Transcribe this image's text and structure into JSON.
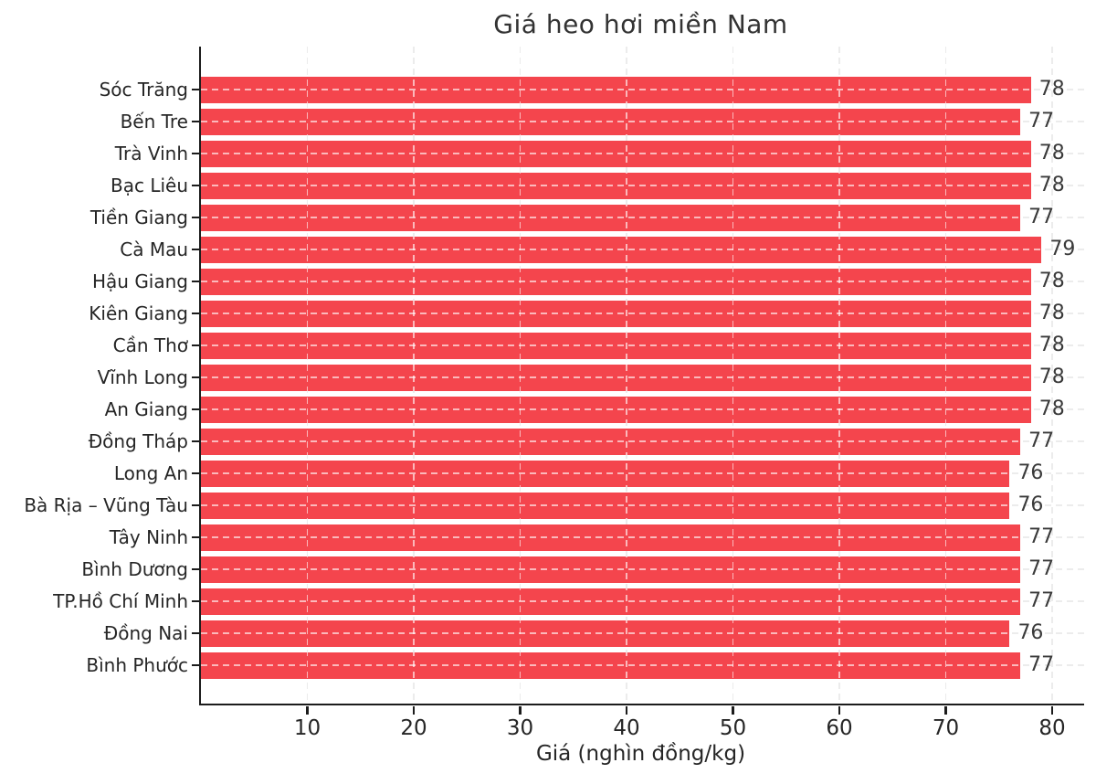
{
  "chart_data": {
    "type": "bar",
    "orientation": "horizontal",
    "title": "Giá heo hơi miền Nam",
    "xlabel": "Giá (nghìn đồng/kg)",
    "categories": [
      "Sóc Trăng",
      "Bến Tre",
      "Trà Vinh",
      "Bạc Liêu",
      "Tiền Giang",
      "Cà Mau",
      "Hậu Giang",
      "Kiên Giang",
      "Cần Thơ",
      "Vĩnh Long",
      "An Giang",
      "Đồng Tháp",
      "Long An",
      "Bà Rịa – Vũng Tàu",
      "Tây Ninh",
      "Bình Dương",
      "TP.Hồ Chí Minh",
      "Đồng Nai",
      "Bình Phước"
    ],
    "values": [
      78,
      77,
      78,
      78,
      77,
      79,
      78,
      78,
      78,
      78,
      78,
      77,
      76,
      76,
      77,
      77,
      77,
      76,
      77
    ],
    "x_ticks": [
      10,
      20,
      30,
      40,
      50,
      60,
      70,
      80
    ],
    "xlim": [
      0,
      83
    ],
    "bar_color": "#f4454d",
    "grid_color": "#cccccc",
    "text_color": "#262626",
    "value_labels_shown": true,
    "legend": "none",
    "grid": "dashed"
  }
}
